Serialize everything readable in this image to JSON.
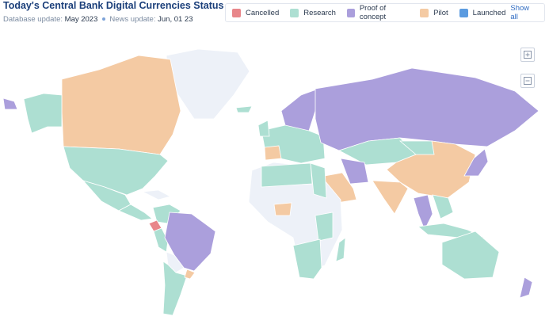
{
  "header": {
    "title": "Today's Central Bank Digital Currencies Status",
    "database_label": "Database update:",
    "database_value": "May 2023",
    "news_label": "News update:",
    "news_value": "Jun, 01 23"
  },
  "legend": {
    "items": [
      {
        "name": "Cancelled",
        "color": "#e8868a"
      },
      {
        "name": "Research",
        "color": "#addfd2"
      },
      {
        "name": "Proof of concept",
        "color": "#ab9fdc"
      },
      {
        "name": "Pilot",
        "color": "#f4caa3"
      },
      {
        "name": "Launched",
        "color": "#5b9be0"
      }
    ],
    "show_all": "Show all"
  }
}
